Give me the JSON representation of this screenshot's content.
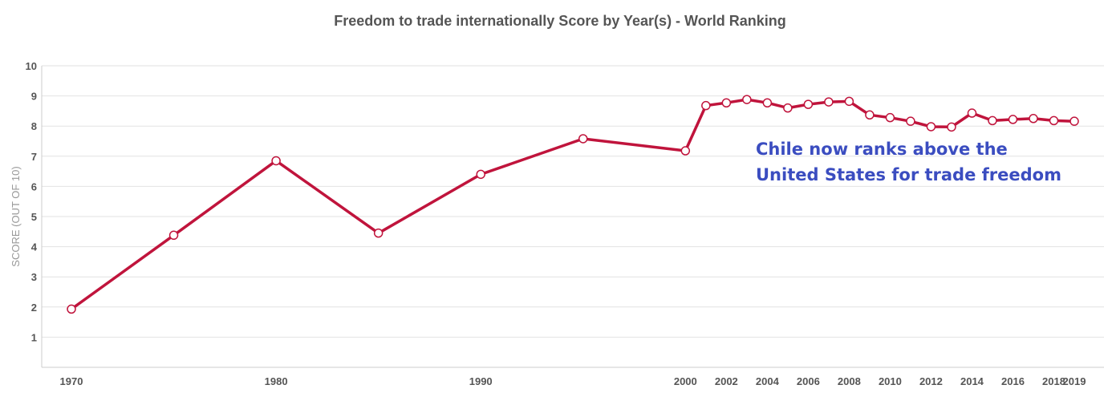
{
  "chart_data": {
    "type": "line",
    "title": "Freedom to trade internationally Score by Year(s) - World Ranking",
    "xlabel": "",
    "ylabel": "SCORE (OUT OF 10)",
    "ylim": [
      0,
      10
    ],
    "yticks": [
      "1",
      "2",
      "3",
      "4",
      "5",
      "6",
      "7",
      "8",
      "9",
      "10"
    ],
    "grid": true,
    "xtick_labels": [
      "1970",
      "1980",
      "1990",
      "2000",
      "2002",
      "2004",
      "2006",
      "2008",
      "2010",
      "2012",
      "2014",
      "2016",
      "2018",
      "2019"
    ],
    "x": [
      "1970",
      "1975",
      "1980",
      "1985",
      "1990",
      "1995",
      "2000",
      "2001",
      "2002",
      "2003",
      "2004",
      "2005",
      "2006",
      "2007",
      "2008",
      "2009",
      "2010",
      "2011",
      "2012",
      "2013",
      "2014",
      "2015",
      "2016",
      "2017",
      "2018",
      "2019"
    ],
    "series": [
      {
        "color": "#c0143c",
        "values": [
          1.93,
          4.38,
          6.85,
          4.45,
          6.4,
          7.58,
          7.18,
          8.68,
          8.77,
          8.88,
          8.77,
          8.6,
          8.72,
          8.8,
          8.82,
          8.37,
          8.28,
          8.16,
          7.98,
          7.97,
          8.43,
          8.18,
          8.22,
          8.25,
          8.18,
          8.16
        ]
      }
    ],
    "annotations": [
      "Chile now ranks above the",
      "United States for trade freedom"
    ]
  }
}
